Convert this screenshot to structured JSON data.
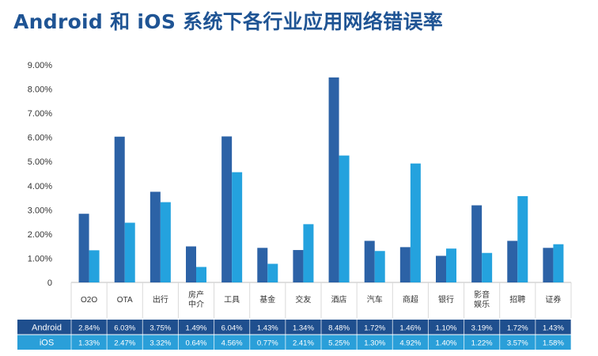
{
  "title": "Android 和 iOS 系统下各行业应用网络错误率",
  "colors": {
    "android": "#2c62a6",
    "ios": "#24a2de",
    "table_android_row": "#1f4f8e",
    "table_ios_row": "#2a9fd9",
    "axis": "#bfbfbf",
    "title": "#1f5494"
  },
  "chart_data": {
    "type": "bar",
    "title": "Android 和 iOS 系统下各行业应用网络错误率",
    "xlabel": "",
    "ylabel": "",
    "ylim": [
      0,
      9
    ],
    "y_ticks": [
      "0",
      "1.00%",
      "2.00%",
      "3.00%",
      "4.00%",
      "5.00%",
      "6.00%",
      "7.00%",
      "8.00%",
      "9.00%"
    ],
    "categories": [
      [
        "O2O"
      ],
      [
        "OTA"
      ],
      [
        "出行"
      ],
      [
        "房产",
        "中介"
      ],
      [
        "工具"
      ],
      [
        "基金"
      ],
      [
        "交友"
      ],
      [
        "酒店"
      ],
      [
        "汽车"
      ],
      [
        "商超"
      ],
      [
        "银行"
      ],
      [
        "影音",
        "娱乐"
      ],
      [
        "招聘"
      ],
      [
        "证券"
      ]
    ],
    "series": [
      {
        "name": "Android",
        "values": [
          2.84,
          6.03,
          3.75,
          1.49,
          6.04,
          1.43,
          1.34,
          8.48,
          1.72,
          1.46,
          1.1,
          3.19,
          1.72,
          1.43
        ],
        "labels": [
          "2.84%",
          "6.03%",
          "3.75%",
          "1.49%",
          "6.04%",
          "1.43%",
          "1.34%",
          "8.48%",
          "1.72%",
          "1.46%",
          "1.10%",
          "3.19%",
          "1.72%",
          "1.43%"
        ]
      },
      {
        "name": "iOS",
        "values": [
          1.33,
          2.47,
          3.32,
          0.64,
          4.56,
          0.77,
          2.41,
          5.25,
          1.3,
          4.92,
          1.4,
          1.22,
          3.57,
          1.58
        ],
        "labels": [
          "1.33%",
          "2.47%",
          "3.32%",
          "0.64%",
          "4.56%",
          "0.77%",
          "2.41%",
          "5.25%",
          "1.30%",
          "4.92%",
          "1.40%",
          "1.22%",
          "3.57%",
          "1.58%"
        ]
      }
    ],
    "legend": "data-table-below"
  }
}
